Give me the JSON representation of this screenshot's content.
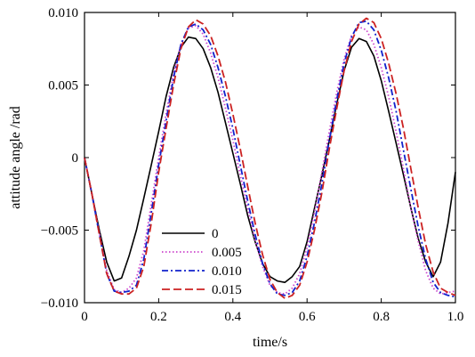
{
  "chart_data": {
    "type": "line",
    "xlabel": "time/s",
    "ylabel": "attitude angle /rad",
    "xlim": [
      0,
      1.0
    ],
    "ylim": [
      -0.01,
      0.01
    ],
    "xticks": [
      0,
      0.2,
      0.4,
      0.6,
      0.8,
      1.0
    ],
    "xtick_labels": [
      "0",
      "0.2",
      "0.4",
      "0.6",
      "0.8",
      "1.0"
    ],
    "yticks": [
      -0.01,
      -0.005,
      0,
      0.005,
      0.01
    ],
    "ytick_labels": [
      "−0.010",
      "−0.005",
      "0",
      "0.005",
      "0.010"
    ],
    "grid": false,
    "legend_position": "bottom-left",
    "series": [
      {
        "name": "0",
        "color": "#000000",
        "dash": "solid",
        "x": [
          0,
          0.02,
          0.04,
          0.06,
          0.08,
          0.1,
          0.12,
          0.14,
          0.16,
          0.18,
          0.2,
          0.22,
          0.24,
          0.26,
          0.28,
          0.3,
          0.32,
          0.34,
          0.36,
          0.38,
          0.4,
          0.42,
          0.44,
          0.46,
          0.48,
          0.5,
          0.52,
          0.54,
          0.56,
          0.58,
          0.6,
          0.62,
          0.64,
          0.66,
          0.68,
          0.7,
          0.72,
          0.74,
          0.76,
          0.78,
          0.8,
          0.82,
          0.84,
          0.86,
          0.88,
          0.9,
          0.92,
          0.94,
          0.96,
          0.98,
          1.0
        ],
        "y": [
          0,
          -0.0025,
          -0.005,
          -0.0072,
          -0.0085,
          -0.0083,
          -0.0068,
          -0.005,
          -0.0028,
          -0.0005,
          0.0018,
          0.0042,
          0.0062,
          0.0076,
          0.0083,
          0.0082,
          0.0075,
          0.0062,
          0.0045,
          0.0024,
          0.0003,
          -0.0018,
          -0.004,
          -0.0058,
          -0.0073,
          -0.0082,
          -0.0085,
          -0.0086,
          -0.0082,
          -0.0075,
          -0.0058,
          -0.0035,
          -0.0012,
          0.0012,
          0.0037,
          0.006,
          0.0076,
          0.0082,
          0.008,
          0.007,
          0.0053,
          0.0032,
          0.001,
          -0.0012,
          -0.0035,
          -0.0056,
          -0.0072,
          -0.0082,
          -0.0072,
          -0.0045,
          -0.001
        ]
      },
      {
        "name": "0.005",
        "color": "#cc44cc",
        "dash": "dotted",
        "x": [
          0,
          0.02,
          0.04,
          0.06,
          0.08,
          0.1,
          0.12,
          0.14,
          0.16,
          0.18,
          0.2,
          0.22,
          0.24,
          0.26,
          0.28,
          0.3,
          0.32,
          0.34,
          0.36,
          0.38,
          0.4,
          0.42,
          0.44,
          0.46,
          0.48,
          0.5,
          0.52,
          0.54,
          0.56,
          0.58,
          0.6,
          0.62,
          0.64,
          0.66,
          0.68,
          0.7,
          0.72,
          0.74,
          0.76,
          0.78,
          0.8,
          0.82,
          0.84,
          0.86,
          0.88,
          0.9,
          0.92,
          0.94,
          0.96,
          0.98,
          1.0
        ],
        "y": [
          0,
          -0.0025,
          -0.0052,
          -0.0078,
          -0.0091,
          -0.0093,
          -0.009,
          -0.0083,
          -0.0064,
          -0.0032,
          0.0,
          0.003,
          0.0058,
          0.0078,
          0.0089,
          0.0091,
          0.0085,
          0.0072,
          0.0055,
          0.0034,
          0.0012,
          -0.0012,
          -0.0035,
          -0.0057,
          -0.0075,
          -0.0088,
          -0.0093,
          -0.0094,
          -0.009,
          -0.008,
          -0.0062,
          -0.0038,
          -0.001,
          0.0018,
          0.0045,
          0.0068,
          0.0084,
          0.009,
          0.0088,
          0.0078,
          0.0062,
          0.0042,
          0.0018,
          -0.0008,
          -0.0035,
          -0.0058,
          -0.0078,
          -0.009,
          -0.0094,
          -0.0093,
          -0.0092
        ]
      },
      {
        "name": "0.010",
        "color": "#1122cc",
        "dash": "dashdot",
        "x": [
          0,
          0.02,
          0.04,
          0.06,
          0.08,
          0.1,
          0.12,
          0.14,
          0.16,
          0.18,
          0.2,
          0.22,
          0.24,
          0.26,
          0.28,
          0.3,
          0.32,
          0.34,
          0.36,
          0.38,
          0.4,
          0.42,
          0.44,
          0.46,
          0.48,
          0.5,
          0.52,
          0.54,
          0.56,
          0.58,
          0.6,
          0.62,
          0.64,
          0.66,
          0.68,
          0.7,
          0.72,
          0.74,
          0.76,
          0.78,
          0.8,
          0.82,
          0.84,
          0.86,
          0.88,
          0.9,
          0.92,
          0.94,
          0.96,
          0.98,
          1.0
        ],
        "y": [
          0,
          -0.0025,
          -0.0053,
          -0.008,
          -0.0092,
          -0.0093,
          -0.0092,
          -0.0088,
          -0.007,
          -0.0038,
          -0.0005,
          0.0025,
          0.0055,
          0.0078,
          0.009,
          0.0092,
          0.0088,
          0.0078,
          0.0062,
          0.0042,
          0.002,
          -0.0005,
          -0.003,
          -0.0053,
          -0.0073,
          -0.0087,
          -0.0094,
          -0.0095,
          -0.0093,
          -0.0085,
          -0.0068,
          -0.0045,
          -0.0018,
          0.0012,
          0.004,
          0.0065,
          0.0083,
          0.0093,
          0.0094,
          0.0088,
          0.0074,
          0.0055,
          0.0032,
          0.0005,
          -0.0022,
          -0.0048,
          -0.007,
          -0.0086,
          -0.0093,
          -0.0095,
          -0.0096
        ]
      },
      {
        "name": "0.015",
        "color": "#cc2222",
        "dash": "dashed",
        "x": [
          0,
          0.02,
          0.04,
          0.06,
          0.08,
          0.1,
          0.12,
          0.14,
          0.16,
          0.18,
          0.2,
          0.22,
          0.24,
          0.26,
          0.28,
          0.3,
          0.32,
          0.34,
          0.36,
          0.38,
          0.4,
          0.42,
          0.44,
          0.46,
          0.48,
          0.5,
          0.52,
          0.54,
          0.56,
          0.58,
          0.6,
          0.62,
          0.64,
          0.66,
          0.68,
          0.7,
          0.72,
          0.74,
          0.76,
          0.78,
          0.8,
          0.82,
          0.84,
          0.86,
          0.88,
          0.9,
          0.92,
          0.94,
          0.96,
          0.98,
          1.0
        ],
        "y": [
          0,
          -0.0025,
          -0.0053,
          -0.008,
          -0.0092,
          -0.0094,
          -0.0094,
          -0.009,
          -0.0075,
          -0.0045,
          -0.001,
          0.002,
          0.005,
          0.0075,
          0.009,
          0.0095,
          0.0092,
          0.0084,
          0.007,
          0.0052,
          0.003,
          0.0006,
          -0.002,
          -0.0045,
          -0.0067,
          -0.0084,
          -0.0093,
          -0.0097,
          -0.0095,
          -0.0088,
          -0.0072,
          -0.005,
          -0.0024,
          0.0006,
          0.0034,
          0.006,
          0.008,
          0.0092,
          0.0096,
          0.0093,
          0.0082,
          0.0065,
          0.0044,
          0.002,
          -0.0008,
          -0.0035,
          -0.006,
          -0.0079,
          -0.009,
          -0.0093,
          -0.0095
        ]
      }
    ]
  }
}
